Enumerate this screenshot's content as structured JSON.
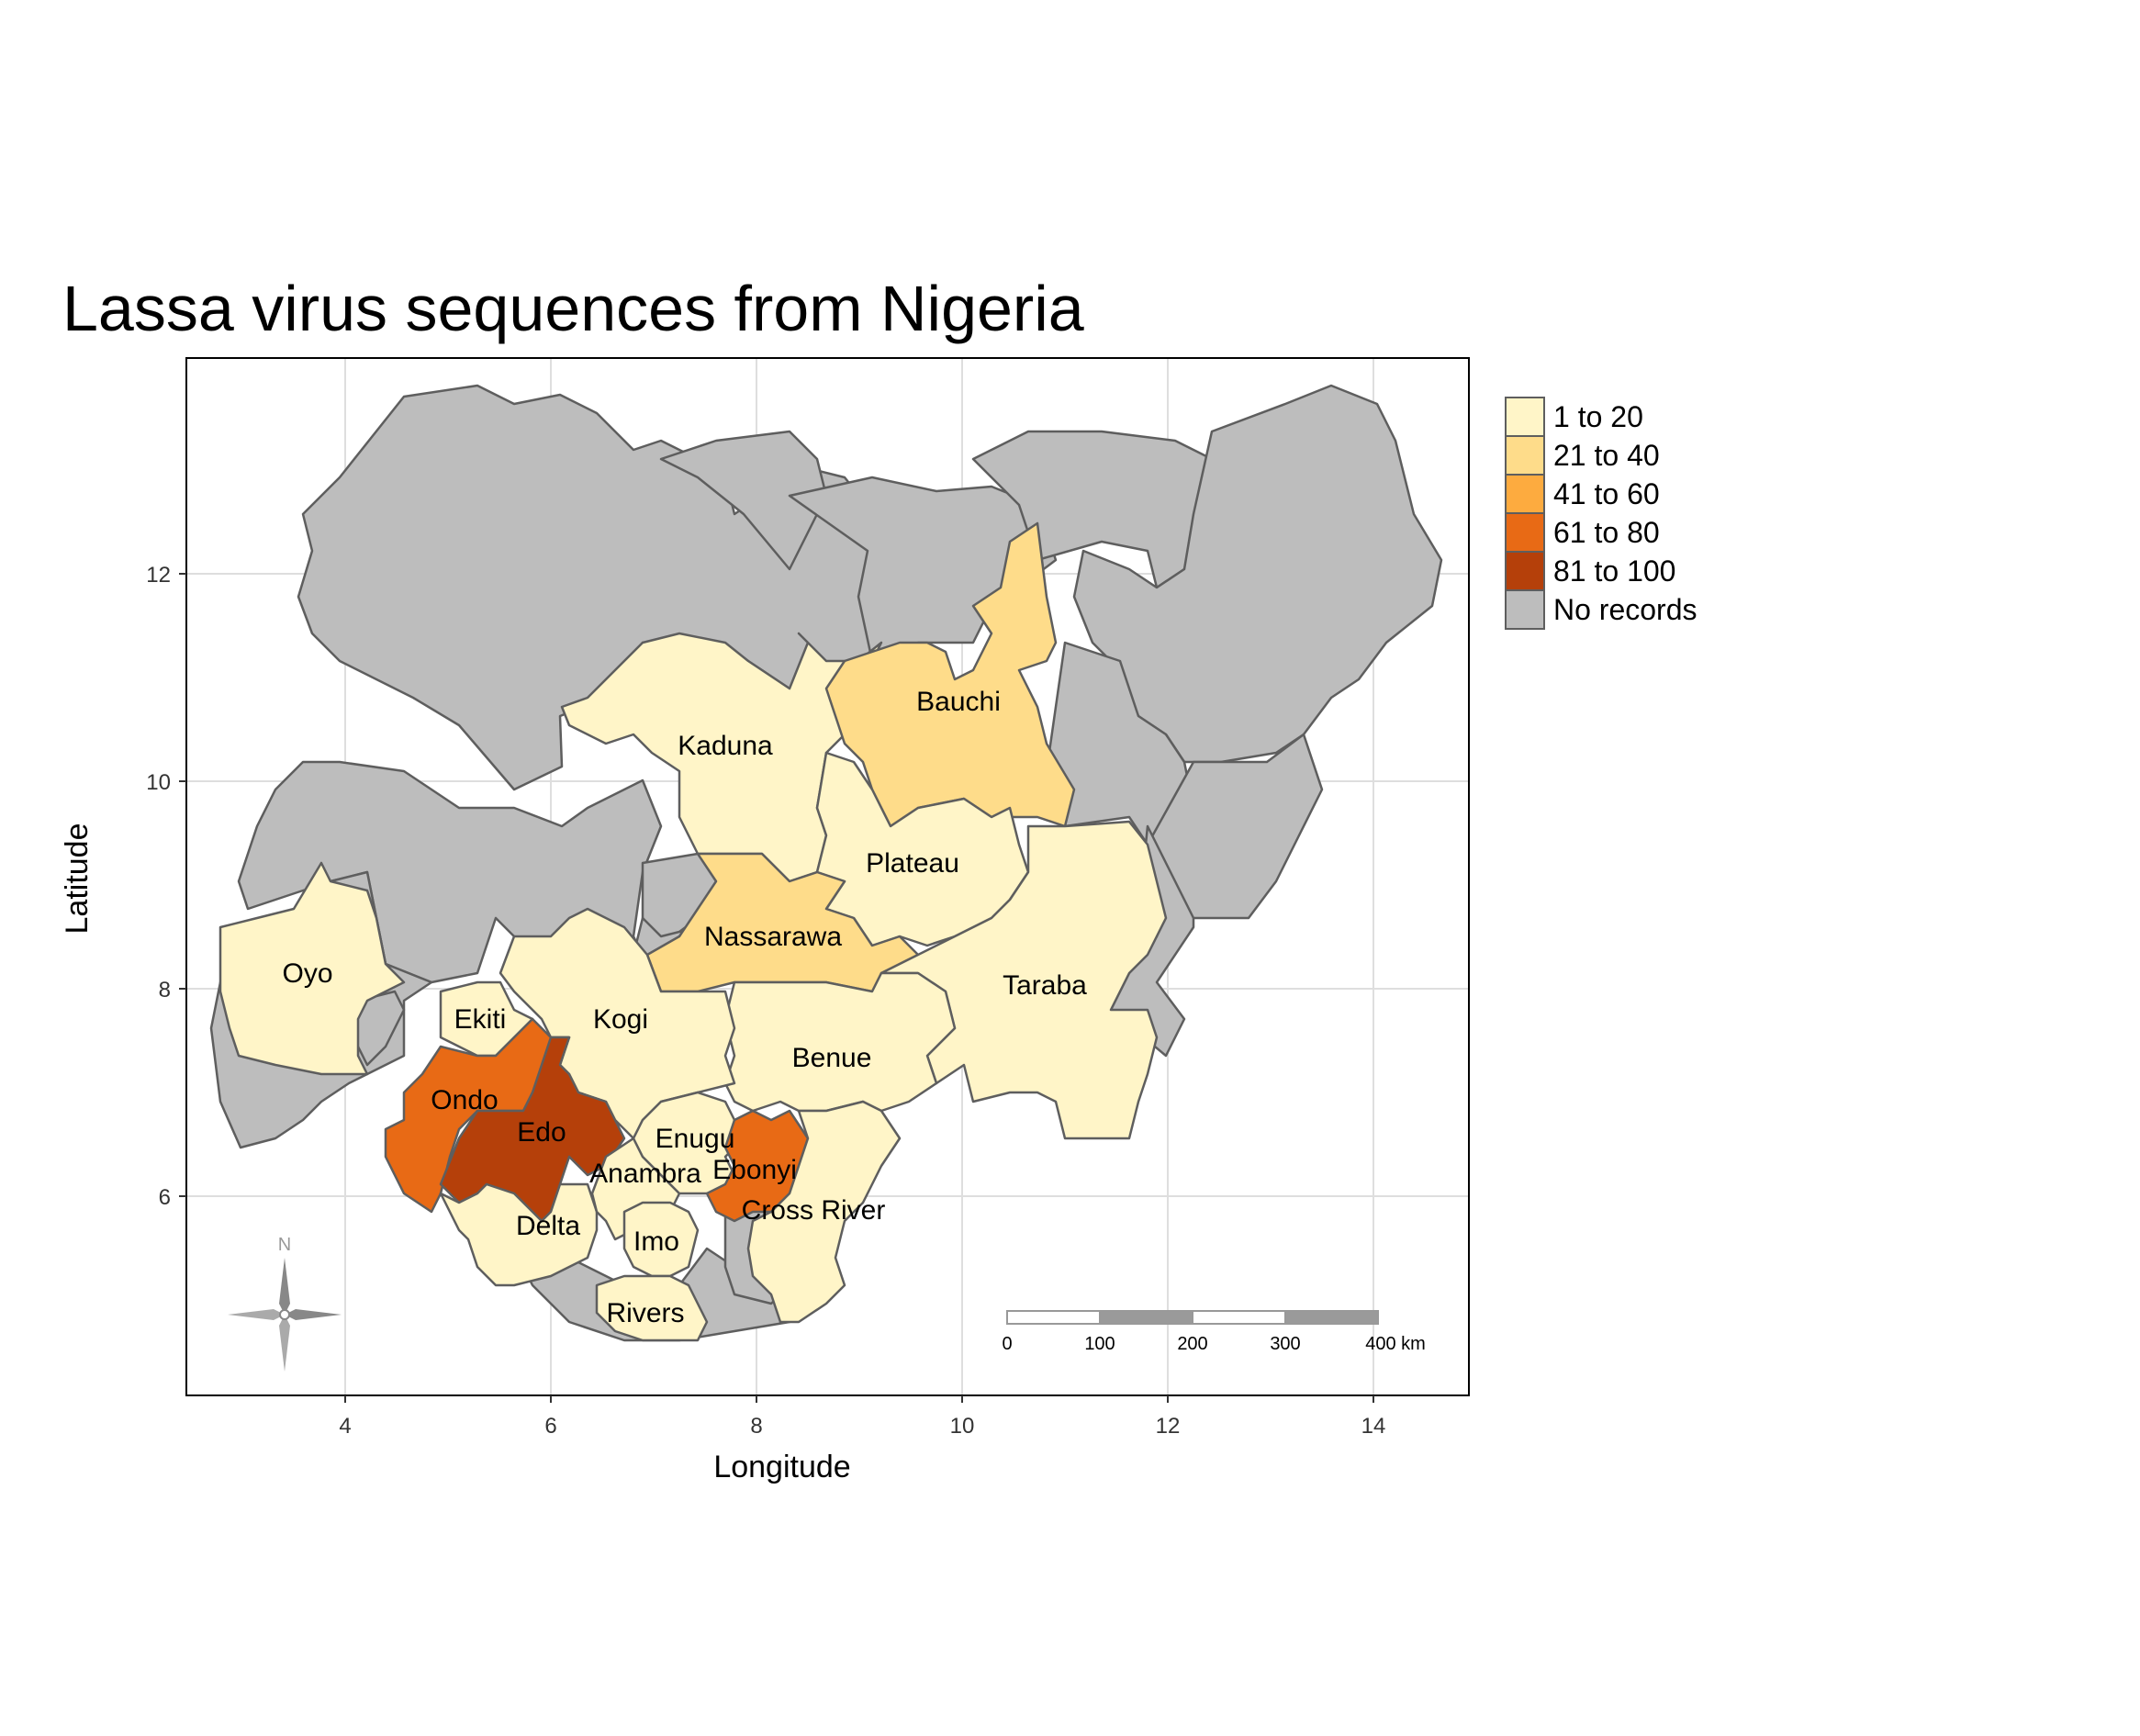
{
  "title": "Lassa virus sequences from Nigeria",
  "xlabel": "Longitude",
  "ylabel": "Latitude",
  "x_ticks": [
    "4",
    "6",
    "8",
    "10",
    "12",
    "14"
  ],
  "y_ticks": [
    "12",
    "10",
    "8",
    "6"
  ],
  "legend": [
    {
      "label": "1 to 20",
      "color": "#FFF5C8"
    },
    {
      "label": "21 to 40",
      "color": "#FEDC8A"
    },
    {
      "label": "41 to 60",
      "color": "#FDAB3F"
    },
    {
      "label": "61 to 80",
      "color": "#E86A15"
    },
    {
      "label": "81 to 100",
      "color": "#B5400A"
    },
    {
      "label": "No records",
      "color": "#BDBDBD"
    }
  ],
  "states": [
    {
      "name": "Kaduna",
      "category": "1 to 20"
    },
    {
      "name": "Bauchi",
      "category": "21 to 40"
    },
    {
      "name": "Plateau",
      "category": "1 to 20"
    },
    {
      "name": "Nassarawa",
      "category": "21 to 40"
    },
    {
      "name": "Taraba",
      "category": "1 to 20"
    },
    {
      "name": "Oyo",
      "category": "1 to 20"
    },
    {
      "name": "Ekiti",
      "category": "1 to 20"
    },
    {
      "name": "Kogi",
      "category": "1 to 20"
    },
    {
      "name": "Benue",
      "category": "1 to 20"
    },
    {
      "name": "Ondo",
      "category": "61 to 80"
    },
    {
      "name": "Edo",
      "category": "81 to 100"
    },
    {
      "name": "Enugu",
      "category": "1 to 20"
    },
    {
      "name": "Anambra",
      "category": "1 to 20"
    },
    {
      "name": "Ebonyi",
      "category": "61 to 80"
    },
    {
      "name": "Cross River",
      "category": "1 to 20"
    },
    {
      "name": "Delta",
      "category": "1 to 20"
    },
    {
      "name": "Imo",
      "category": "1 to 20"
    },
    {
      "name": "Rivers",
      "category": "1 to 20"
    }
  ],
  "compass_label": "N",
  "scale_bar": {
    "labels": [
      "0",
      "100",
      "200",
      "300",
      "400 km"
    ]
  }
}
